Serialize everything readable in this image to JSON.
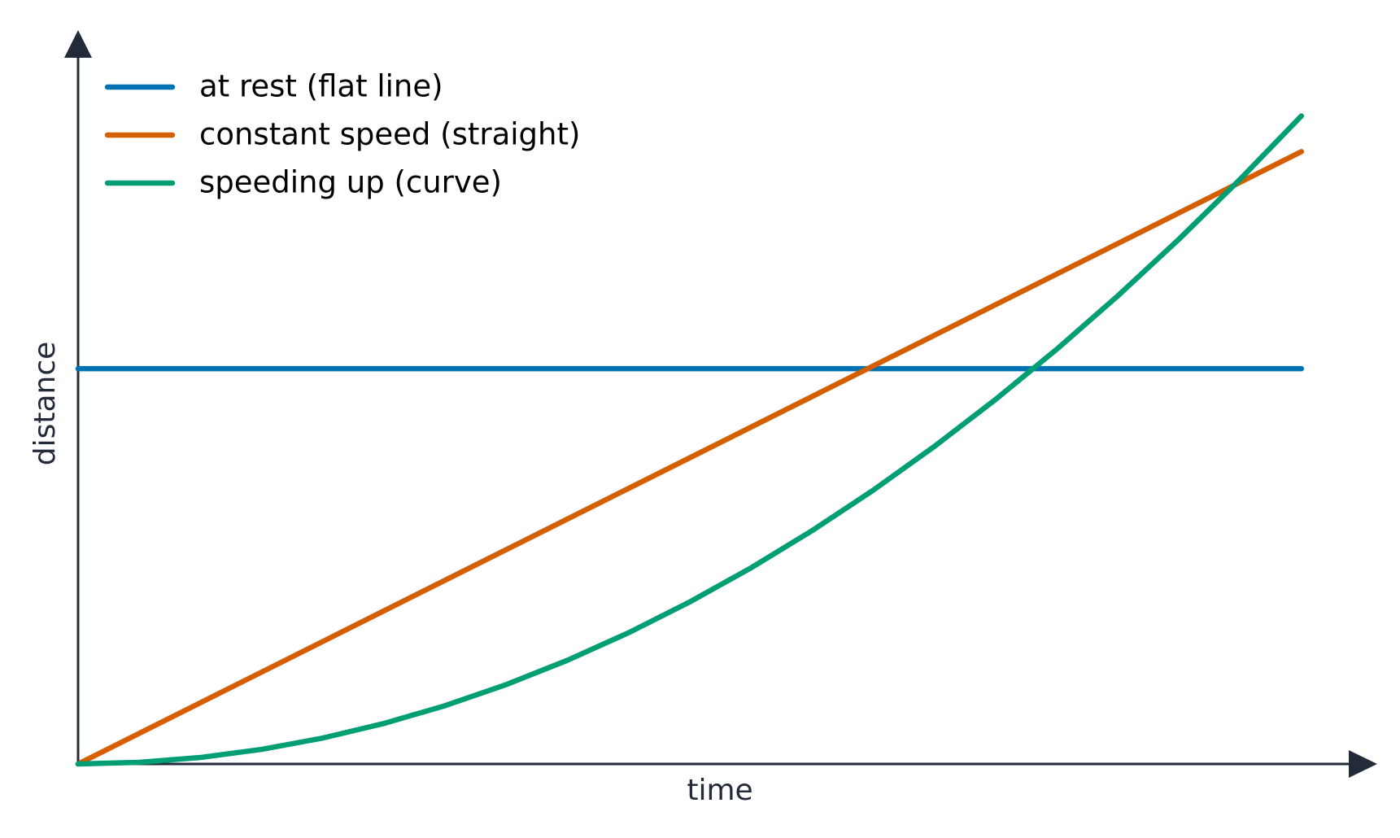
{
  "chart_data": {
    "type": "line",
    "x_label": "time",
    "y_label": "distance",
    "x": [
      0,
      0.5,
      1,
      1.5,
      2,
      2.5,
      3,
      3.5,
      4,
      4.5,
      5,
      5.5,
      6,
      6.5,
      7,
      7.5,
      8,
      8.5,
      9,
      9.5,
      10
    ],
    "series": [
      {
        "name": "at rest (flat line)",
        "color": "#0072b2",
        "values": [
          6.1,
          6.1,
          6.1,
          6.1,
          6.1,
          6.1,
          6.1,
          6.1,
          6.1,
          6.1,
          6.1,
          6.1,
          6.1,
          6.1,
          6.1,
          6.1,
          6.1,
          6.1,
          6.1,
          6.1,
          6.1
        ]
      },
      {
        "name": "constant speed (straight)",
        "color": "#d55e00",
        "values": [
          0,
          0.4725,
          0.945,
          1.4175,
          1.89,
          2.3625,
          2.835,
          3.3075,
          3.78,
          4.2525,
          4.725,
          5.1975,
          5.67,
          6.1425,
          6.615,
          7.0875,
          7.56,
          8.0325,
          8.505,
          8.9775,
          9.45
        ]
      },
      {
        "name": "speeding up (curve)",
        "color": "#009e73",
        "values": [
          0,
          0.025,
          0.1,
          0.225,
          0.4,
          0.625,
          0.9,
          1.225,
          1.6,
          2.025,
          2.5,
          3.025,
          3.6,
          4.225,
          4.9,
          5.625,
          6.4,
          7.225,
          8.1,
          9.025,
          10
        ]
      }
    ],
    "xlim": [
      0,
      10.62
    ],
    "ylim": [
      0,
      11.3
    ],
    "legend": "upper left"
  }
}
